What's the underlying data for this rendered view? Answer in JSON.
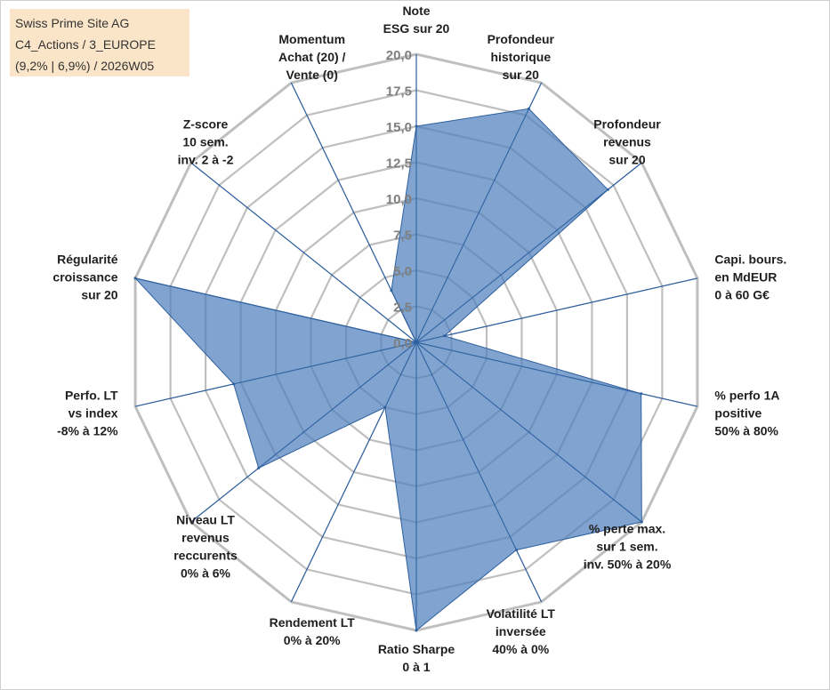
{
  "header": {
    "line1": "Swiss Prime Site AG",
    "line2": "C4_Actions / 3_EUROPE",
    "line3": "(9,2% | 6,9%) / 2026W05"
  },
  "colors": {
    "fill": "#4f81bd",
    "stroke": "#2e5f9e",
    "spoke": "#2e5f9e",
    "grid": "#bfbfbf",
    "title_bg": "#fbe5c8"
  },
  "chart_data": {
    "type": "radar",
    "rmin": 0,
    "rmax": 20,
    "ticks": [
      "0,0",
      "2,5",
      "5,0",
      "7,5",
      "10,0",
      "12,5",
      "15,0",
      "17,5",
      "20,0"
    ],
    "tick_values": [
      0,
      2.5,
      5,
      7.5,
      10,
      12.5,
      15,
      17.5,
      20
    ],
    "axes": [
      {
        "label": [
          "Note",
          "ESG sur 20"
        ],
        "value": 15
      },
      {
        "label": [
          "Profondeur",
          "historique",
          "sur 20"
        ],
        "value": 18
      },
      {
        "label": [
          "Profondeur",
          "revenus",
          "sur 20"
        ],
        "value": 17
      },
      {
        "label": [
          "Capi. bours.",
          "en MdEUR",
          "0 à 60 G€"
        ],
        "value": 2
      },
      {
        "label": [
          "% perfo 1A",
          "positive",
          "50% à 80%"
        ],
        "value": 16
      },
      {
        "label": [
          "% perte max.",
          "sur 1 sem.",
          "inv. 50% à 20%"
        ],
        "value": 20
      },
      {
        "label": [
          "Volatilité LT",
          "inversée",
          "40% à 0%"
        ],
        "value": 16
      },
      {
        "label": [
          "Ratio Sharpe",
          "0 à 1"
        ],
        "value": 20
      },
      {
        "label": [
          "Rendement LT",
          "0% à 20%"
        ],
        "value": 5
      },
      {
        "label": [
          "Niveau LT",
          "revenus",
          "reccurents",
          "0% à 6%"
        ],
        "value": 14
      },
      {
        "label": [
          "Perfo. LT",
          "vs index",
          "-8% à 12%"
        ],
        "value": 13
      },
      {
        "label": [
          "Régularité",
          "croissance",
          "sur 20"
        ],
        "value": 20
      },
      {
        "label": [
          "Z-score",
          "10 sem.",
          "inv. 2 à -2"
        ],
        "value": 0
      },
      {
        "label": [
          "Momentum",
          "Achat (20) /",
          "Vente (0)"
        ],
        "value": 4
      }
    ]
  }
}
